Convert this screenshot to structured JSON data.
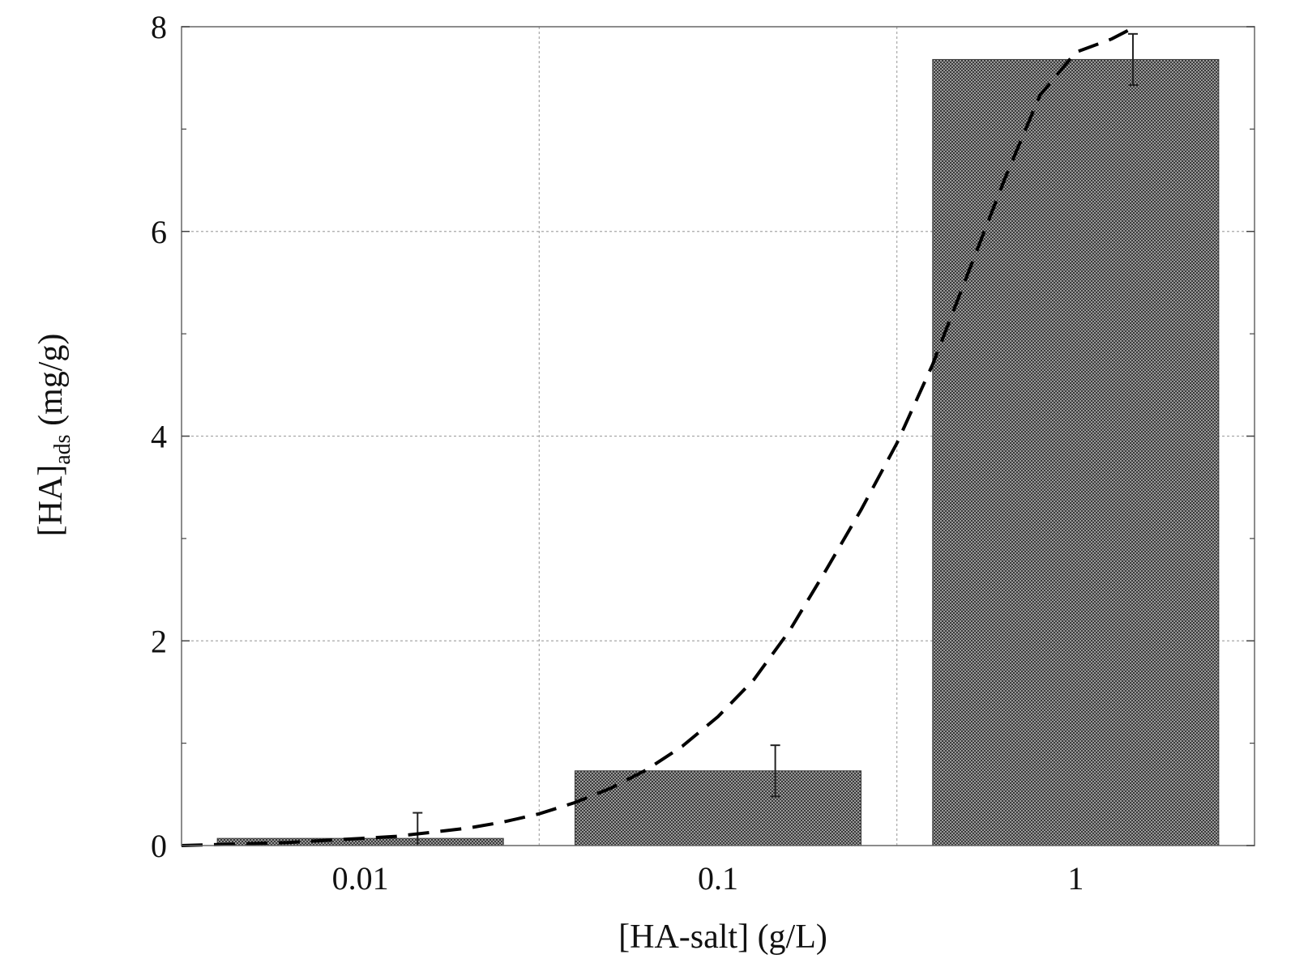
{
  "chart_data": {
    "type": "bar",
    "categories": [
      "0.01",
      "0.1",
      "1"
    ],
    "values": [
      0.07,
      0.73,
      7.68
    ],
    "errors": [
      0.25,
      0.25,
      0.25
    ],
    "xlabel": "[HA-salt] (g/L)",
    "ylabel": {
      "main": "[HA]",
      "subscript": "ads",
      "unit": " (mg/g)"
    },
    "ylim": [
      0,
      8
    ],
    "yticks": [
      0,
      2,
      4,
      6,
      8
    ],
    "grid": true,
    "fit_curve": {
      "style": "dashed",
      "x": [
        0.0,
        0.1,
        0.2,
        0.3,
        0.4,
        0.5,
        0.6,
        0.7,
        0.8,
        0.9,
        1.0,
        1.1,
        1.2,
        1.3,
        1.4,
        1.5,
        1.6,
        1.7,
        1.8,
        1.9,
        2.0,
        2.1,
        2.2,
        2.3,
        2.4,
        2.5,
        2.6,
        2.65
      ],
      "y": [
        0.0,
        0.01,
        0.02,
        0.03,
        0.05,
        0.07,
        0.09,
        0.13,
        0.17,
        0.23,
        0.31,
        0.42,
        0.56,
        0.74,
        0.97,
        1.26,
        1.62,
        2.1,
        2.68,
        3.28,
        3.93,
        4.7,
        5.6,
        6.5,
        7.33,
        7.75,
        7.88,
        7.97
      ]
    }
  }
}
